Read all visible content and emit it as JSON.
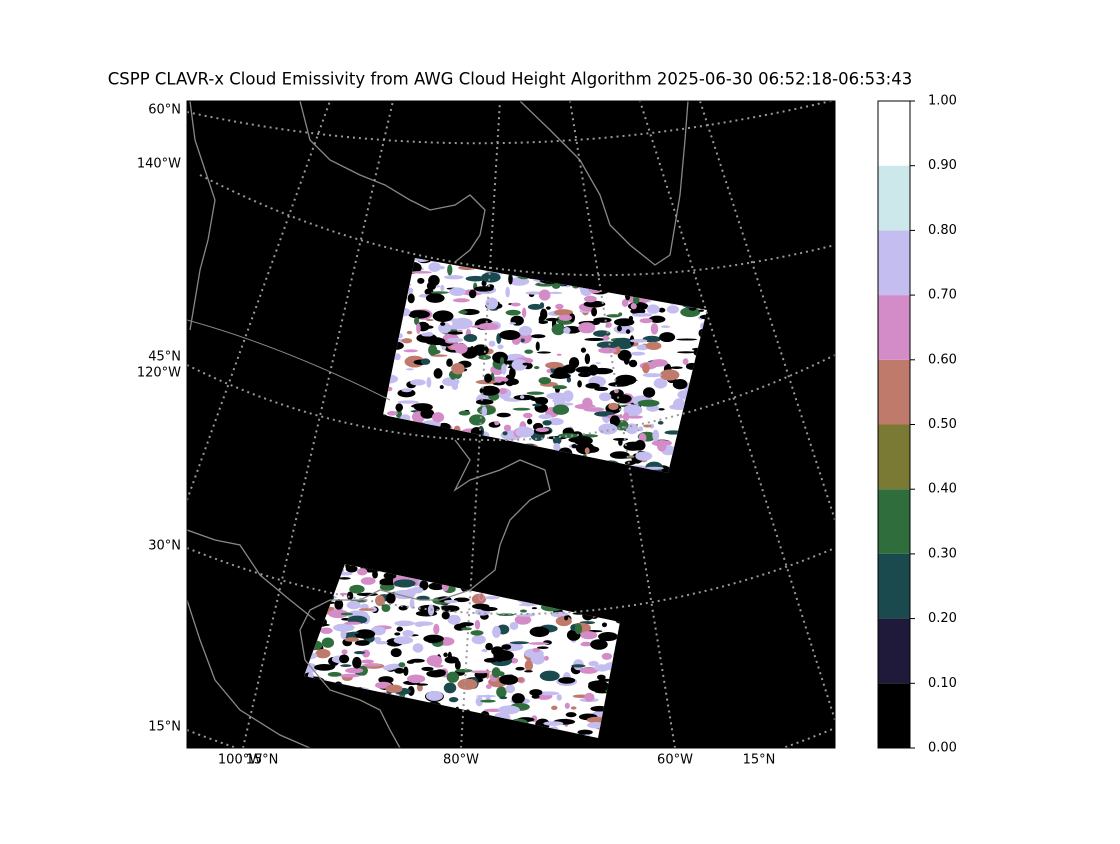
{
  "title": "CSPP CLAVR-x Cloud Emissivity from AWG Cloud Height Algorithm 2025-06-30 06:52:18-06:53:43",
  "map": {
    "labels": [
      "60°N",
      "140°W",
      "45°N",
      "120°W",
      "30°N",
      "15°N",
      "100°W",
      "15°N",
      "80°W",
      "60°W",
      "15°N"
    ]
  },
  "colorbar": {
    "lim": [
      0,
      1
    ],
    "ticks": [
      {
        "value": 0,
        "label": "0.00"
      },
      {
        "value": 0.1,
        "label": "0.10"
      },
      {
        "value": 0.2,
        "label": "0.20"
      },
      {
        "value": 0.3,
        "label": "0.30"
      },
      {
        "value": 0.4,
        "label": "0.40"
      },
      {
        "value": 0.5,
        "label": "0.50"
      },
      {
        "value": 0.6,
        "label": "0.60"
      },
      {
        "value": 0.7,
        "label": "0.70"
      },
      {
        "value": 0.8,
        "label": "0.80"
      },
      {
        "value": 0.9,
        "label": "0.90"
      },
      {
        "value": 1,
        "label": "1.00"
      }
    ],
    "colors": [
      "#000000",
      "#1f1a3a",
      "#1b4a4e",
      "#2f6e3c",
      "#7a7a34",
      "#c07a6c",
      "#d48cc8",
      "#c4bdf0",
      "#cce8eb",
      "#ffffff"
    ]
  }
}
